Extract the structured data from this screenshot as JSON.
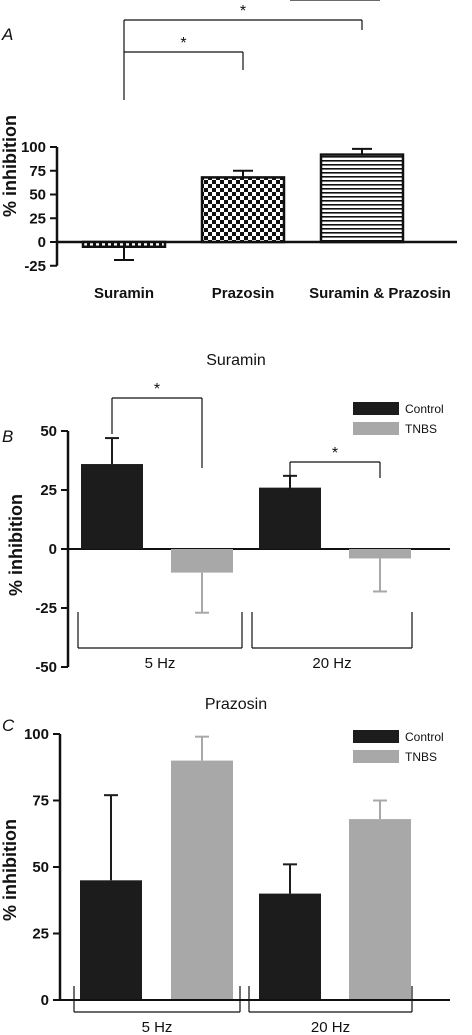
{
  "chart_data": [
    {
      "panel": "A",
      "type": "bar",
      "title": "",
      "ylabel": "% inhibition",
      "ylim": [
        -25,
        100
      ],
      "yticks": [
        "-25",
        "0",
        "25",
        "50",
        "75",
        "100"
      ],
      "categories": [
        "Suramin",
        "Prazosin",
        "Suramin & Prazosin"
      ],
      "values": [
        -5,
        68,
        92
      ],
      "errors": [
        14,
        7,
        6
      ],
      "patterns": [
        "checker",
        "checker-large",
        "horizontal-lines"
      ],
      "significance": [
        {
          "from": "Suramin",
          "to": "Prazosin",
          "label": "*"
        },
        {
          "from": "Suramin",
          "to": "Suramin & Prazosin",
          "label": "*"
        }
      ]
    },
    {
      "panel": "B",
      "type": "bar",
      "title": "Suramin",
      "ylabel": "% inhibition",
      "ylim": [
        -50,
        50
      ],
      "yticks": [
        "-50",
        "-25",
        "0",
        "25",
        "50"
      ],
      "categories": [
        "5 Hz",
        "20 Hz"
      ],
      "series": [
        {
          "name": "Control",
          "color": "#1c1c1c",
          "values": [
            36,
            26
          ],
          "errors": [
            11,
            5
          ]
        },
        {
          "name": "TNBS",
          "color": "#a8a8a8",
          "values": [
            -10,
            -4
          ],
          "errors": [
            17,
            14
          ]
        }
      ],
      "legend": "top-right",
      "significance": [
        {
          "group": "5 Hz",
          "label": "*"
        },
        {
          "group": "20 Hz",
          "label": "*"
        }
      ]
    },
    {
      "panel": "C",
      "type": "bar",
      "title": "Prazosin",
      "ylabel": "% inhibition",
      "ylim": [
        0,
        100
      ],
      "yticks": [
        "0",
        "25",
        "50",
        "75",
        "100"
      ],
      "categories": [
        "5 Hz",
        "20 Hz"
      ],
      "series": [
        {
          "name": "Control",
          "color": "#1c1c1c",
          "values": [
            45,
            40
          ],
          "errors": [
            32,
            11
          ]
        },
        {
          "name": "TNBS",
          "color": "#a8a8a8",
          "values": [
            90,
            68
          ],
          "errors": [
            9,
            7
          ]
        }
      ],
      "legend": "top-right",
      "significance": [
        {
          "group": "20 Hz",
          "label": "*"
        }
      ]
    }
  ]
}
